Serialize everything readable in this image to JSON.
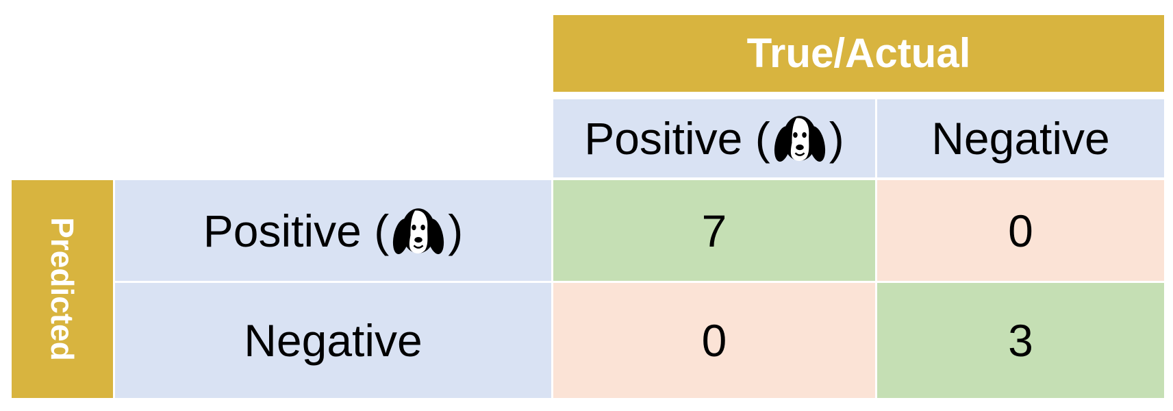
{
  "header": {
    "title": "True/Actual"
  },
  "side": {
    "title": "Predicted"
  },
  "columns": {
    "positive_label": "Positive",
    "negative_label": "Negative"
  },
  "rows": {
    "positive_label": "Positive",
    "negative_label": "Negative"
  },
  "paren_open": "(",
  "paren_close": ")",
  "icon": "dog-face-icon",
  "matrix": {
    "tp": "7",
    "fp": "0",
    "fn": "0",
    "tn": "3"
  },
  "colors": {
    "header": "#d8b43f",
    "label_cells": "#d9e2f3",
    "correct": "#c5dfb4",
    "incorrect": "#fbe3d6"
  }
}
